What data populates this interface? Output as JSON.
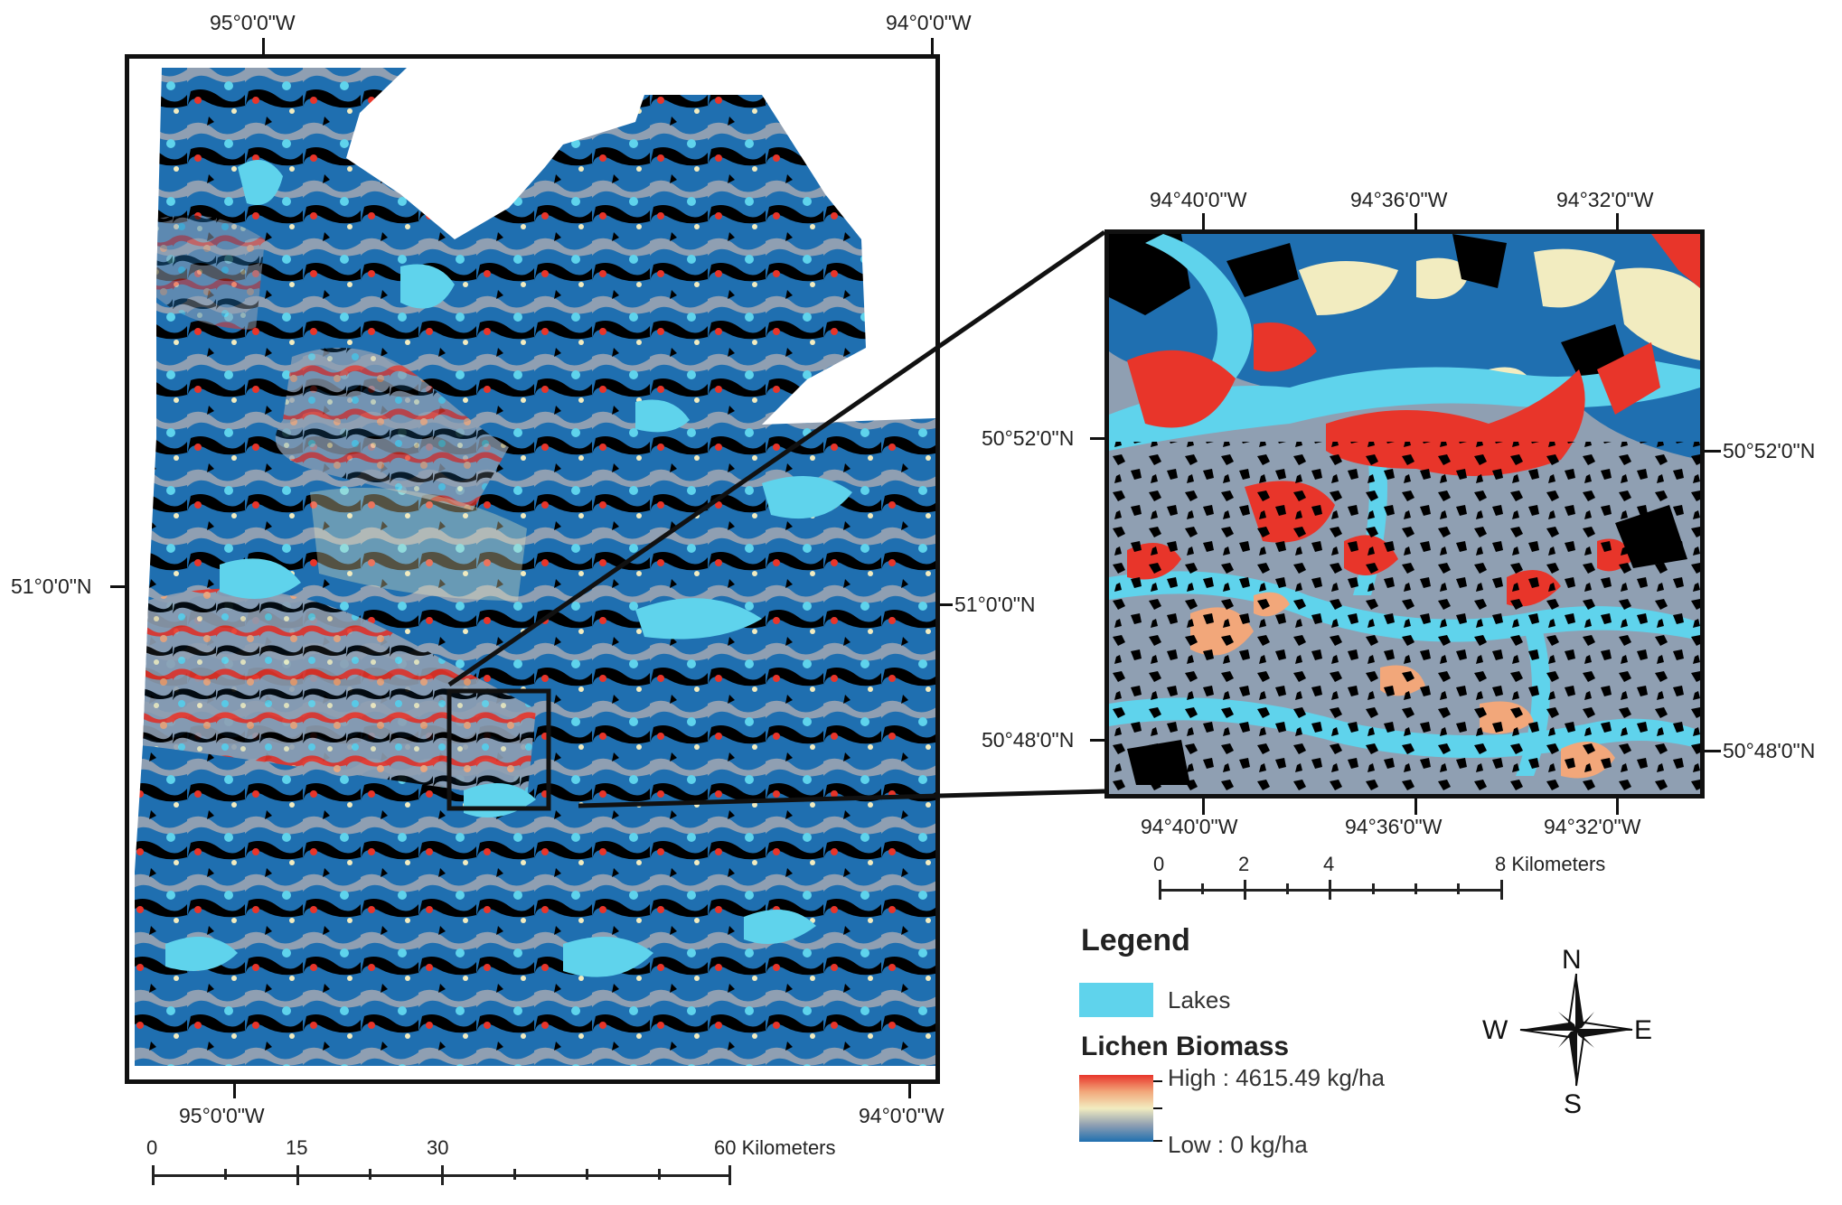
{
  "main_map": {
    "top_labels": [
      "95°0'0\"W",
      "94°0'0\"W"
    ],
    "bottom_labels": [
      "95°0'0\"W",
      "94°0'0\"W"
    ],
    "left_label": "51°0'0\"N",
    "right_label": "51°0'0\"N",
    "scale": {
      "ticks": [
        "0",
        "15",
        "30",
        "60 Kilometers"
      ]
    }
  },
  "inset_map": {
    "top_labels": [
      "94°40'0\"W",
      "94°36'0\"W",
      "94°32'0\"W"
    ],
    "bottom_labels": [
      "94°40'0\"W",
      "94°36'0\"W",
      "94°32'0\"W"
    ],
    "left_labels": [
      "50°52'0\"N",
      "50°48'0\"N"
    ],
    "right_labels": [
      "50°52'0\"N",
      "50°48'0\"N"
    ],
    "scale": {
      "ticks": [
        "0",
        "2",
        "4",
        "8 Kilometers"
      ]
    }
  },
  "legend": {
    "title": "Legend",
    "lakes_label": "Lakes",
    "biomass_title": "Lichen Biomass",
    "high_label": "High : 4615.49 kg/ha",
    "low_label": "Low : 0 kg/ha",
    "colors": {
      "lakes": "#5fd3ec",
      "high": "#e8352a",
      "mid_high": "#f2a77a",
      "mid": "#f2ecc0",
      "mid_low": "#8f9fb2",
      "low": "#1f6fb0",
      "nodata": "#000000"
    }
  },
  "compass": {
    "n": "N",
    "s": "S",
    "e": "E",
    "w": "W"
  }
}
